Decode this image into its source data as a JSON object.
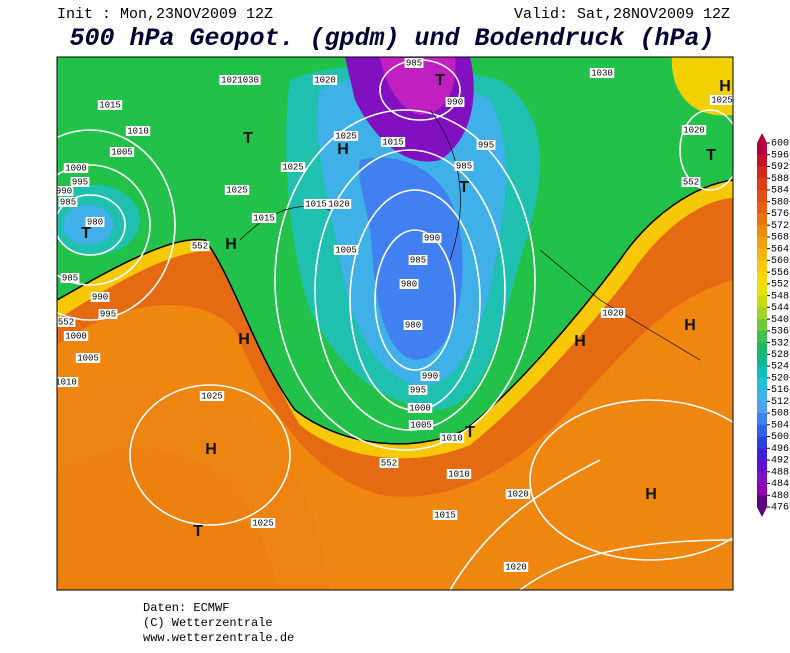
{
  "header": {
    "init": "Init : Mon,23NOV2009 12Z",
    "valid": "Valid: Sat,28NOV2009 12Z",
    "title": "500 hPa Geopot. (gpdm) und Bodendruck (hPa)"
  },
  "map": {
    "labels": [
      "1015",
      "1010",
      "1005",
      "1000",
      "995",
      "990",
      "985",
      "980",
      "985",
      "990",
      "995",
      "552",
      "1000",
      "1005",
      "1010",
      "1025",
      "1025",
      "1021030",
      "1020",
      "985",
      "990",
      "1025",
      "1015",
      "985",
      "995",
      "1025",
      "1025",
      "1015",
      "1015",
      "1020",
      "1005",
      "990",
      "985",
      "980",
      "980",
      "990",
      "995",
      "1000",
      "1005",
      "1010",
      "552",
      "1010",
      "1015",
      "1020",
      "1020",
      "1020",
      "1030",
      "1020",
      "1025",
      "552",
      "552",
      "H",
      "T",
      "T",
      "H",
      "T",
      "T",
      "H",
      "T",
      "H",
      "H",
      "H",
      "T",
      "H",
      "T",
      "H"
    ]
  },
  "colorbar": {
    "ticks": [
      600,
      596,
      592,
      588,
      584,
      580,
      576,
      572,
      568,
      564,
      560,
      556,
      552,
      548,
      544,
      540,
      536,
      532,
      528,
      524,
      520,
      516,
      512,
      508,
      504,
      500,
      496,
      492,
      488,
      484,
      480,
      476
    ],
    "colors": [
      "#b3003c",
      "#c8102e",
      "#d42a1e",
      "#dc3d18",
      "#e04f14",
      "#e66212",
      "#ea7510",
      "#ef8a10",
      "#f39f10",
      "#f7b40c",
      "#f9c808",
      "#f7d800",
      "#e8e000",
      "#c8dc10",
      "#a0d428",
      "#70c83a",
      "#40c050",
      "#20b868",
      "#10b890",
      "#10c0b8",
      "#20c0d8",
      "#40b0e8",
      "#50a0f0",
      "#4080f0",
      "#3060e8",
      "#3040e0",
      "#4020d8",
      "#6010d0",
      "#8010c0",
      "#9000b0",
      "#600080"
    ]
  },
  "footer": {
    "lines": [
      "Daten: ECMWF",
      "(C) Wetterzentrale",
      "www.wetterzentrale.de"
    ]
  }
}
